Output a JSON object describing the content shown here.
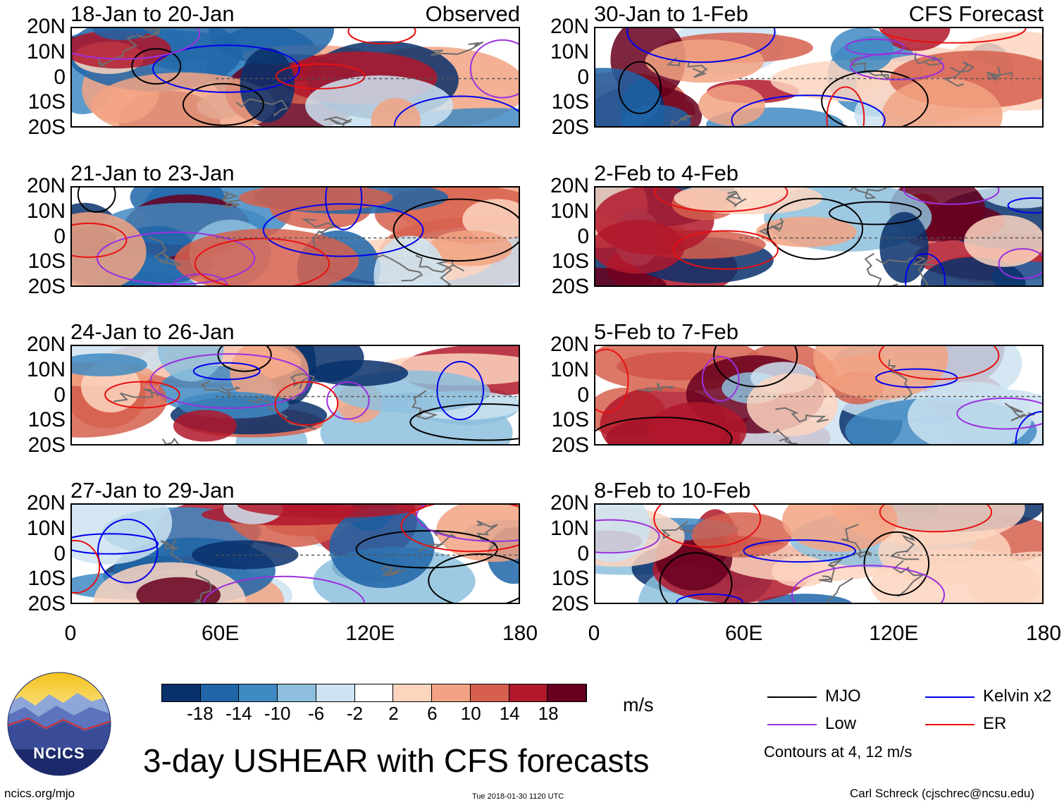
{
  "panels": [
    {
      "title": "18-Jan to 20-Jan",
      "source": "Observed",
      "tone": 0
    },
    {
      "title": "30-Jan to 1-Feb",
      "source": "CFS Forecast",
      "tone": 1
    },
    {
      "title": "21-Jan to 23-Jan",
      "source": "",
      "tone": 2
    },
    {
      "title": "2-Feb to 4-Feb",
      "source": "",
      "tone": 3
    },
    {
      "title": "24-Jan to 26-Jan",
      "source": "",
      "tone": 4
    },
    {
      "title": "5-Feb to 7-Feb",
      "source": "",
      "tone": 5
    },
    {
      "title": "27-Jan to 29-Jan",
      "source": "",
      "tone": 6
    },
    {
      "title": "8-Feb to 10-Feb",
      "source": "",
      "tone": 7
    }
  ],
  "y_axis": {
    "labels": [
      "20N",
      "10N",
      "0",
      "10S",
      "20S"
    ]
  },
  "x_axis": {
    "labels": [
      "0",
      "60E",
      "120E",
      "180"
    ]
  },
  "colorbar": {
    "colors": [
      "#08306b",
      "#1f65a8",
      "#3f8ac2",
      "#8dbfdd",
      "#cde3f1",
      "#ffffff",
      "#fdd5bf",
      "#f2a383",
      "#d6604d",
      "#b2182b",
      "#67001f"
    ],
    "ticks": [
      "-18",
      "-14",
      "-10",
      "-6",
      "-2",
      "2",
      "6",
      "10",
      "14",
      "18"
    ],
    "units": "m/s"
  },
  "legend": {
    "items": [
      {
        "label": "MJO",
        "color": "#000000"
      },
      {
        "label": "Kelvin x2",
        "color": "#0000ee"
      },
      {
        "label": "Low",
        "color": "#9b30e0"
      },
      {
        "label": "ER",
        "color": "#e81010"
      }
    ],
    "note": "Contours at 4, 12 m/s"
  },
  "logo_text": "NCICS",
  "title": "3-day USHEAR with CFS forecasts",
  "footer": {
    "site": "ncics.org/mjo",
    "timestamp": "Tue 2018-01-30 1120 UTC",
    "author": "Carl Schreck (cjschrec@ncsu.edu)"
  }
}
